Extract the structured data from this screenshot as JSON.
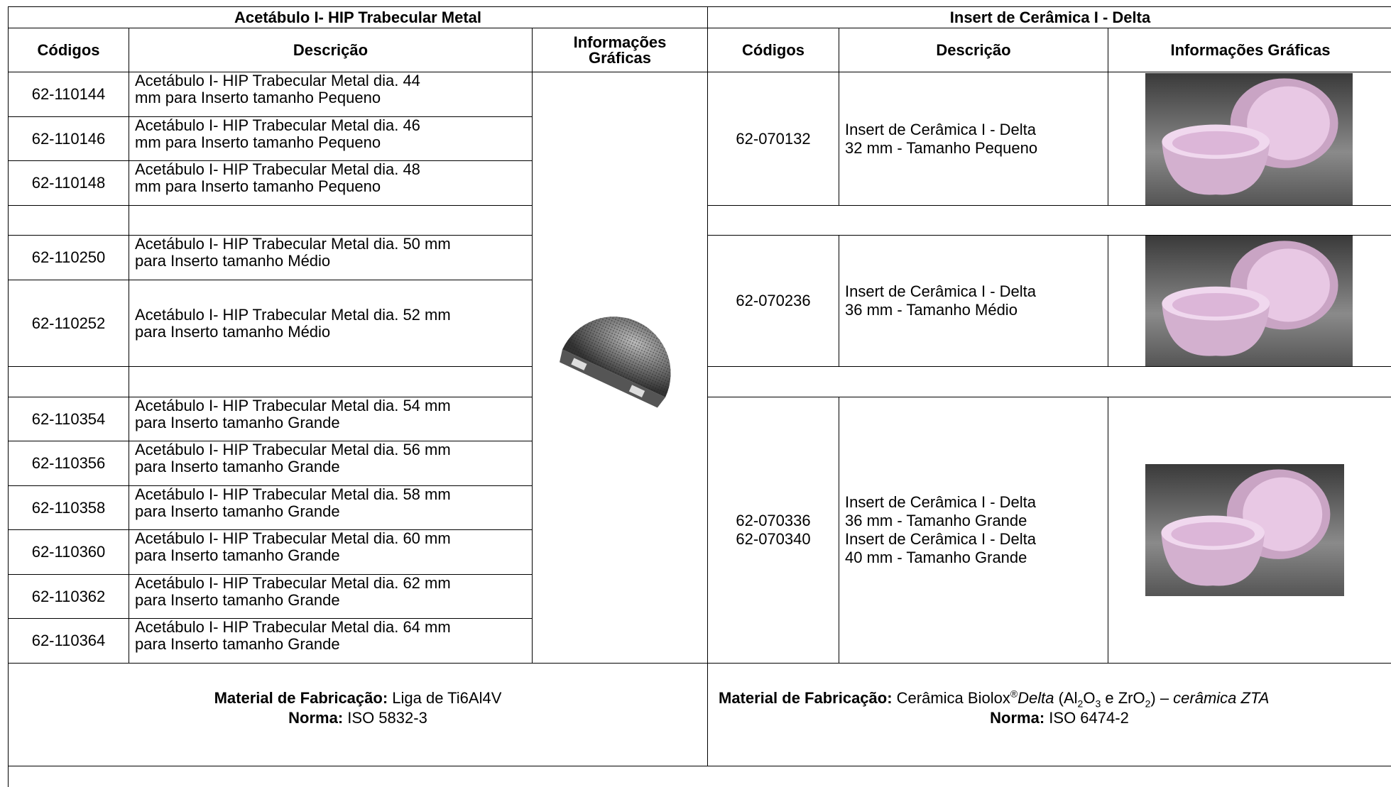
{
  "left": {
    "title": "Acetábulo I- HIP Trabecular Metal",
    "headers": {
      "code": "Códigos",
      "description": "Descrição",
      "graphics": [
        "Informações",
        "Gráficas"
      ]
    },
    "rows": [
      {
        "code": "62-110144",
        "description": [
          "Acetábulo I- HIP Trabecular Metal  dia. 44",
          "mm para Inserto tamanho Pequeno"
        ]
      },
      {
        "code": "62-110146",
        "description": [
          "Acetábulo I- HIP Trabecular Metal  dia. 46",
          "mm para Inserto tamanho Pequeno"
        ]
      },
      {
        "code": "62-110148",
        "description": [
          "Acetábulo I- HIP Trabecular Metal  dia. 48",
          "mm para Inserto tamanho Pequeno"
        ]
      },
      {
        "code": "62-110250",
        "description": [
          "Acetábulo I- HIP Trabecular Metal dia. 50 mm",
          "para Inserto tamanho Médio"
        ]
      },
      {
        "code": "62-110252",
        "description": [
          "Acetábulo I- HIP Trabecular Metal dia. 52 mm",
          "para Inserto tamanho Médio"
        ]
      },
      {
        "code": "62-110354",
        "description": [
          "Acetábulo I- HIP Trabecular Metal dia. 54 mm",
          "para Inserto tamanho Grande"
        ]
      },
      {
        "code": "62-110356",
        "description": [
          "Acetábulo I- HIP Trabecular Metal dia. 56 mm",
          "para Inserto tamanho Grande"
        ]
      },
      {
        "code": "62-110358",
        "description": [
          "Acetábulo I- HIP Trabecular Metal dia. 58 mm",
          "para Inserto tamanho Grande"
        ]
      },
      {
        "code": "62-110360",
        "description": [
          "Acetábulo I- HIP Trabecular Metal dia. 60 mm",
          "para Inserto tamanho Grande"
        ]
      },
      {
        "code": "62-110362",
        "description": [
          "Acetábulo I- HIP Trabecular Metal dia. 62 mm",
          "para Inserto tamanho Grande"
        ]
      },
      {
        "code": "62-110364",
        "description": [
          "Acetábulo I- HIP Trabecular Metal dia. 64 mm",
          "para Inserto tamanho Grande"
        ]
      }
    ],
    "footer": {
      "material_label": "Material de Fabricação:",
      "material": " Liga de Ti6Al4V",
      "norm_label": "Norma:",
      "norm": " ISO 5832-3"
    }
  },
  "right": {
    "title": "Insert de Cerâmica I - Delta",
    "headers": {
      "code": "Códigos",
      "description": "Descrição",
      "graphics": "Informações Gráficas"
    },
    "groups": [
      {
        "codes": [
          "62-070132"
        ],
        "description": [
          "Insert de Cerâmica I - Delta",
          "32 mm - Tamanho Pequeno"
        ]
      },
      {
        "codes": [
          "62-070236"
        ],
        "description": [
          "Insert de Cerâmica I - Delta",
          "36 mm - Tamanho Médio"
        ]
      },
      {
        "codes": [
          "62-070336",
          "62-070340"
        ],
        "description": [
          "Insert de Cerâmica I - Delta",
          "36 mm - Tamanho Grande",
          "Insert de Cerâmica I - Delta",
          "40 mm - Tamanho Grande"
        ]
      }
    ],
    "footer": {
      "material_label": "Material de Fabricação:",
      "material_parts": [
        " Cerâmica Biolox",
        "®",
        "Delta",
        " (Al",
        "2",
        "O",
        "3",
        " e ZrO",
        "2",
        ") – ",
        "cerâmica ZTA"
      ],
      "norm_label": "Norma:",
      "norm": " ISO 6474-2"
    }
  }
}
